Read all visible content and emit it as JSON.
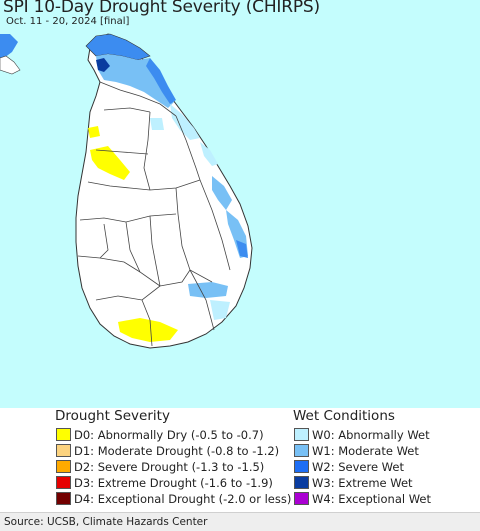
{
  "map": {
    "title": "SPI 10-Day Drought Severity (CHIRPS)",
    "subtitle": "Oct. 11 - 20, 2024 [final]",
    "colors": {
      "ocean": "#c4fdfd",
      "land": "#ffffff",
      "boundary": "#444444",
      "drought_d0": "#ffff00",
      "wet_w0": "#bef0ff",
      "wet_w1": "#78c0f5",
      "wet_w2": "#3c8cf0",
      "wet_w3": "#0a3ca0"
    }
  },
  "legend": {
    "drought": {
      "heading": "Drought Severity",
      "items": [
        {
          "code": "D0",
          "label": "D0: Abnormally Dry (-0.5 to -0.7)",
          "color": "#ffff00"
        },
        {
          "code": "D1",
          "label": "D1: Moderate Drought (-0.8 to -1.2)",
          "color": "#fcd37f"
        },
        {
          "code": "D2",
          "label": "D2: Severe Drought (-1.3 to -1.5)",
          "color": "#ffaa00"
        },
        {
          "code": "D3",
          "label": "D3: Extreme Drought (-1.6 to -1.9)",
          "color": "#e60000"
        },
        {
          "code": "D4",
          "label": "D4: Exceptional Drought (-2.0 or less)",
          "color": "#730000"
        }
      ]
    },
    "wet": {
      "heading": "Wet Conditions",
      "items": [
        {
          "code": "W0",
          "label": "W0: Abnormally Wet",
          "color": "#bef0ff"
        },
        {
          "code": "W1",
          "label": "W1: Moderate Wet",
          "color": "#78c0f5"
        },
        {
          "code": "W2",
          "label": "W2: Severe Wet",
          "color": "#1e6ef5"
        },
        {
          "code": "W3",
          "label": "W3: Extreme Wet",
          "color": "#0a3ca0"
        },
        {
          "code": "W4",
          "label": "W4: Exceptional Wet",
          "color": "#aa00d2"
        }
      ]
    }
  },
  "footer": {
    "source": "Source: UCSB, Climate Hazards Center"
  }
}
